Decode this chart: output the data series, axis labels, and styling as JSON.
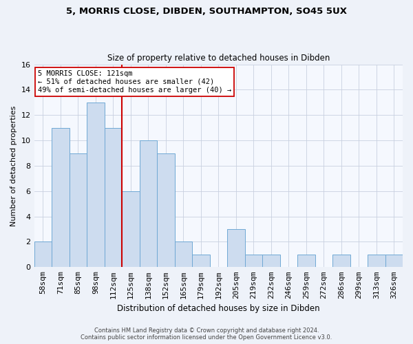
{
  "title1": "5, MORRIS CLOSE, DIBDEN, SOUTHAMPTON, SO45 5UX",
  "title2": "Size of property relative to detached houses in Dibden",
  "xlabel": "Distribution of detached houses by size in Dibden",
  "ylabel": "Number of detached properties",
  "categories": [
    "58sqm",
    "71sqm",
    "85sqm",
    "98sqm",
    "112sqm",
    "125sqm",
    "138sqm",
    "152sqm",
    "165sqm",
    "179sqm",
    "192sqm",
    "205sqm",
    "219sqm",
    "232sqm",
    "246sqm",
    "259sqm",
    "272sqm",
    "286sqm",
    "299sqm",
    "313sqm",
    "326sqm"
  ],
  "values": [
    2,
    11,
    9,
    13,
    11,
    6,
    10,
    9,
    2,
    1,
    0,
    3,
    1,
    1,
    0,
    1,
    0,
    1,
    0,
    1,
    1
  ],
  "bar_color": "#cddcef",
  "bar_edge_color": "#6fa8d4",
  "vline_x_idx": 4,
  "vline_color": "#cc0000",
  "annotation_line1": "5 MORRIS CLOSE: 121sqm",
  "annotation_line2": "← 51% of detached houses are smaller (42)",
  "annotation_line3": "49% of semi-detached houses are larger (40) →",
  "annotation_box_color": "#ffffff",
  "annotation_box_edge": "#cc0000",
  "ylim": [
    0,
    16
  ],
  "yticks": [
    0,
    2,
    4,
    6,
    8,
    10,
    12,
    14,
    16
  ],
  "footer1": "Contains HM Land Registry data © Crown copyright and database right 2024.",
  "footer2": "Contains public sector information licensed under the Open Government Licence v3.0.",
  "bg_color": "#eef2f9",
  "plot_bg_color": "#f5f8fe",
  "grid_color": "#c8d0e0"
}
